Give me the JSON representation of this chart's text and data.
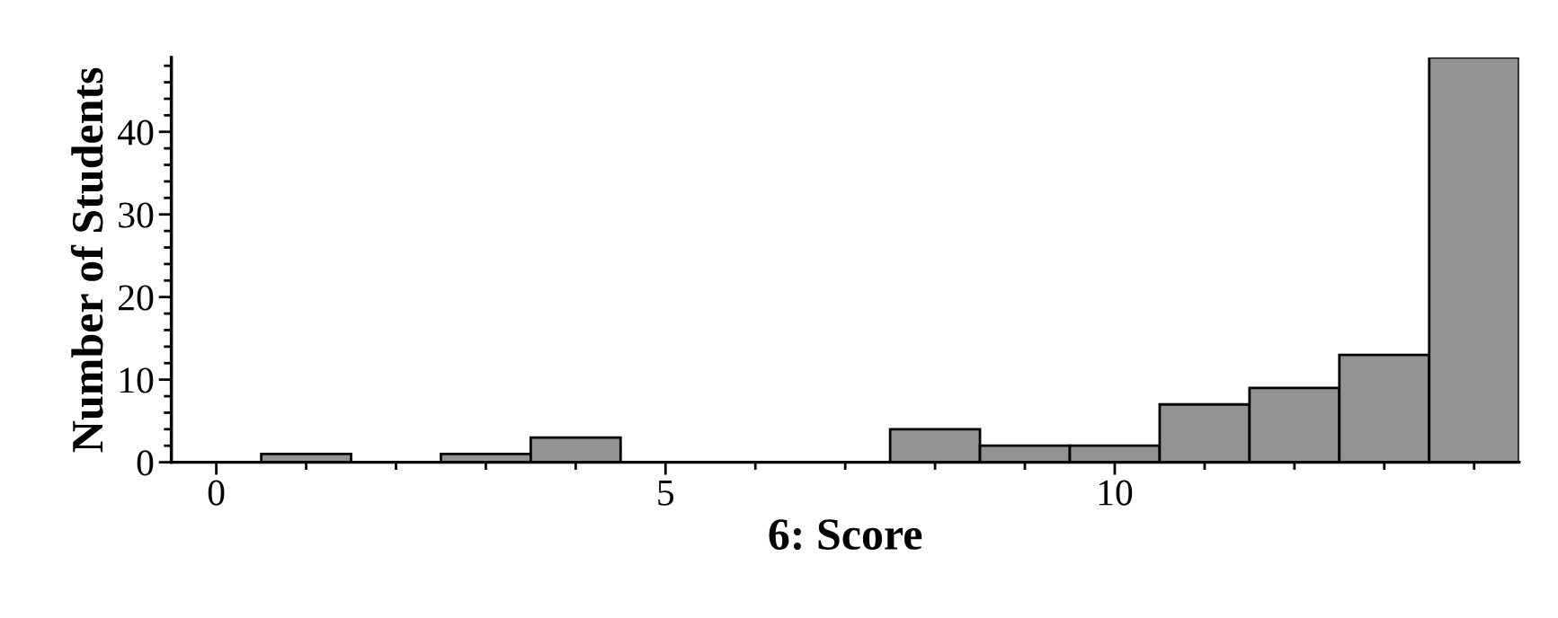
{
  "chart_data": {
    "type": "histogram",
    "xlabel": "6: Score",
    "ylabel": "Number of Students",
    "bins": [
      -0.5,
      0.5,
      1.5,
      2.5,
      3.5,
      4.5,
      5.5,
      6.5,
      7.5,
      8.5,
      9.5,
      10.5,
      11.5,
      12.5,
      13.5,
      14.5
    ],
    "values": [
      0,
      1,
      0,
      1,
      3,
      0,
      0,
      0,
      4,
      2,
      2,
      7,
      9,
      13,
      49
    ],
    "color": "#939393",
    "xlim": [
      -0.5,
      14.5
    ],
    "ylim": [
      0,
      49
    ],
    "xticks": [
      0,
      {
        "value": 1,
        "label": null
      },
      {
        "value": 2,
        "label": null
      },
      {
        "value": 3,
        "label": null
      },
      {
        "value": 4,
        "label": null
      },
      5,
      {
        "value": 6,
        "label": null
      },
      {
        "value": 7,
        "label": null
      },
      {
        "value": 8,
        "label": null
      },
      {
        "value": 9,
        "label": null
      },
      10,
      {
        "value": 11,
        "label": null
      },
      {
        "value": 12,
        "label": null
      },
      {
        "value": 13,
        "label": null
      },
      {
        "value": 14,
        "label": null
      }
    ],
    "yticks": [
      0,
      10,
      20,
      30,
      40,
      {
        "value": 2,
        "label": null
      },
      {
        "value": 4,
        "label": null
      },
      {
        "value": 6,
        "label": null
      },
      {
        "value": 8,
        "label": null
      },
      {
        "value": 12,
        "label": null
      },
      {
        "value": 14,
        "label": null
      },
      {
        "value": 16,
        "label": null
      },
      {
        "value": 18,
        "label": null
      },
      {
        "value": 22,
        "label": null
      },
      {
        "value": 24,
        "label": null
      },
      {
        "value": 26,
        "label": null
      },
      {
        "value": 28,
        "label": null
      },
      {
        "value": 32,
        "label": null
      },
      {
        "value": 34,
        "label": null
      },
      {
        "value": 36,
        "label": null
      },
      {
        "value": 38,
        "label": null
      },
      {
        "value": 42,
        "label": null
      },
      {
        "value": 44,
        "label": null
      },
      {
        "value": 46,
        "label": null
      },
      {
        "value": 48,
        "label": null
      }
    ],
    "grid": false
  }
}
